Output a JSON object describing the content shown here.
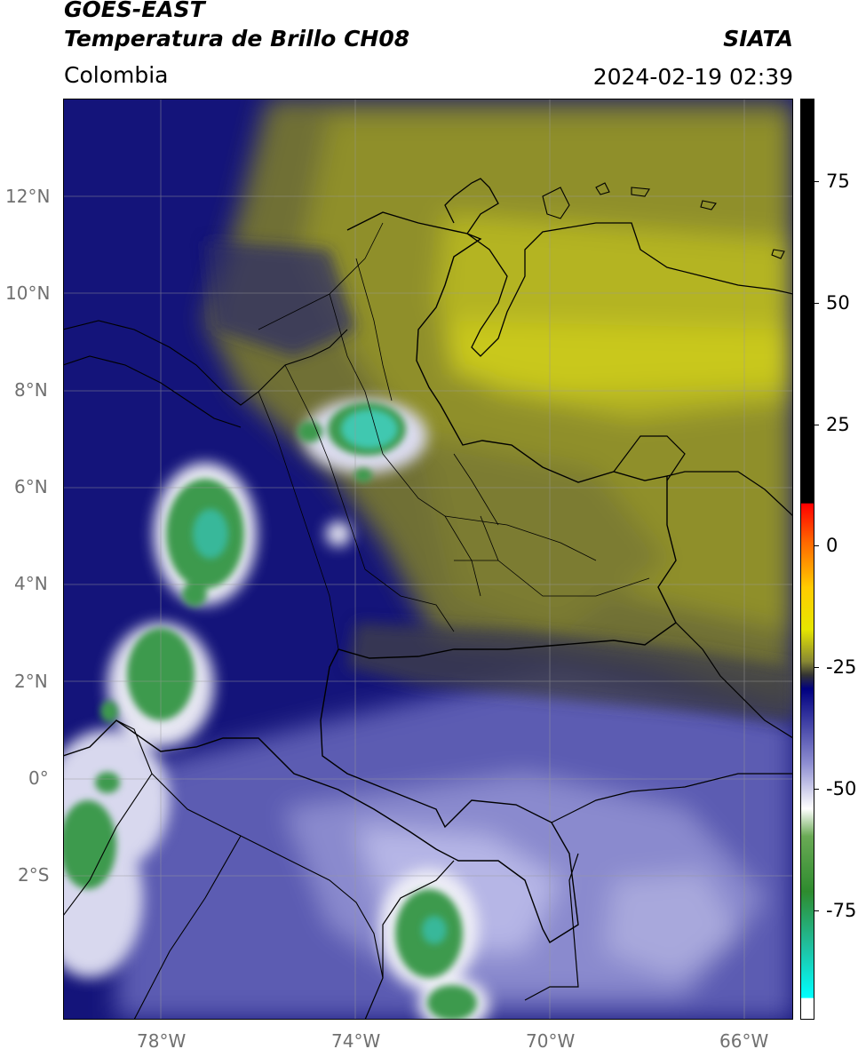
{
  "header": {
    "satellite": "GOES-EAST",
    "product": "Temperatura de Brillo CH08",
    "brand": "SIATA",
    "region": "Colombia",
    "timestamp": "2024-02-19 02:39"
  },
  "map": {
    "lon_range": [
      -80,
      -65
    ],
    "lat_range": [
      -5,
      14
    ],
    "lat_labels": [
      "12°N",
      "10°N",
      "8°N",
      "6°N",
      "4°N",
      "2°N",
      "0°",
      "2°S"
    ],
    "lon_labels": [
      "78°W",
      "74°W",
      "70°W",
      "66°W"
    ],
    "grid": true,
    "colors": {
      "warm_olive": "#8f8f2a",
      "yellow": "#c9c81a",
      "navy": "#101070",
      "lavender": "#9a9ad6",
      "white": "#f2f2f8",
      "green": "#3e9a4e",
      "teal": "#40c8b0"
    }
  },
  "colorbar": {
    "labels": [
      "75",
      "50",
      "25",
      "0",
      "-25",
      "-50",
      "-75"
    ],
    "colors": [
      "#000000",
      "#ff0000",
      "#ff9900",
      "#e6e600",
      "#888833",
      "#333333",
      "#000080",
      "#ffffff",
      "#2e8b2e",
      "#00ffff"
    ]
  }
}
